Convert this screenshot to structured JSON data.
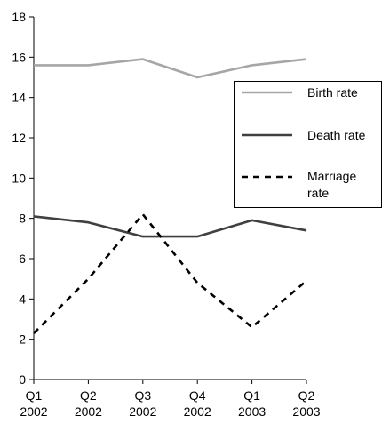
{
  "chart_data": {
    "type": "line",
    "categories": [
      [
        "Q1",
        "2002"
      ],
      [
        "Q2",
        "2002"
      ],
      [
        "Q3",
        "2002"
      ],
      [
        "Q4",
        "2002"
      ],
      [
        "Q1",
        "2003"
      ],
      [
        "Q2",
        "2003"
      ]
    ],
    "y_ticks": [
      0,
      2,
      4,
      6,
      8,
      10,
      12,
      14,
      16,
      18
    ],
    "ylim": [
      0,
      18
    ],
    "grid": false,
    "legend_position": "right",
    "series": [
      {
        "name": "Birth rate",
        "legend_lines": [
          "Birth rate"
        ],
        "color": "#a6a6a6",
        "style": "solid",
        "values": [
          15.6,
          15.6,
          15.9,
          15.0,
          15.6,
          15.9
        ]
      },
      {
        "name": "Death rate",
        "legend_lines": [
          "Death rate"
        ],
        "color": "#404040",
        "style": "solid",
        "values": [
          8.1,
          7.8,
          7.1,
          7.1,
          7.9,
          7.4
        ]
      },
      {
        "name": "Marriage rate",
        "legend_lines": [
          "Marriage",
          "rate"
        ],
        "color": "#000000",
        "style": "dashed",
        "values": [
          2.3,
          5.0,
          8.2,
          4.8,
          2.6,
          4.9
        ]
      }
    ]
  }
}
